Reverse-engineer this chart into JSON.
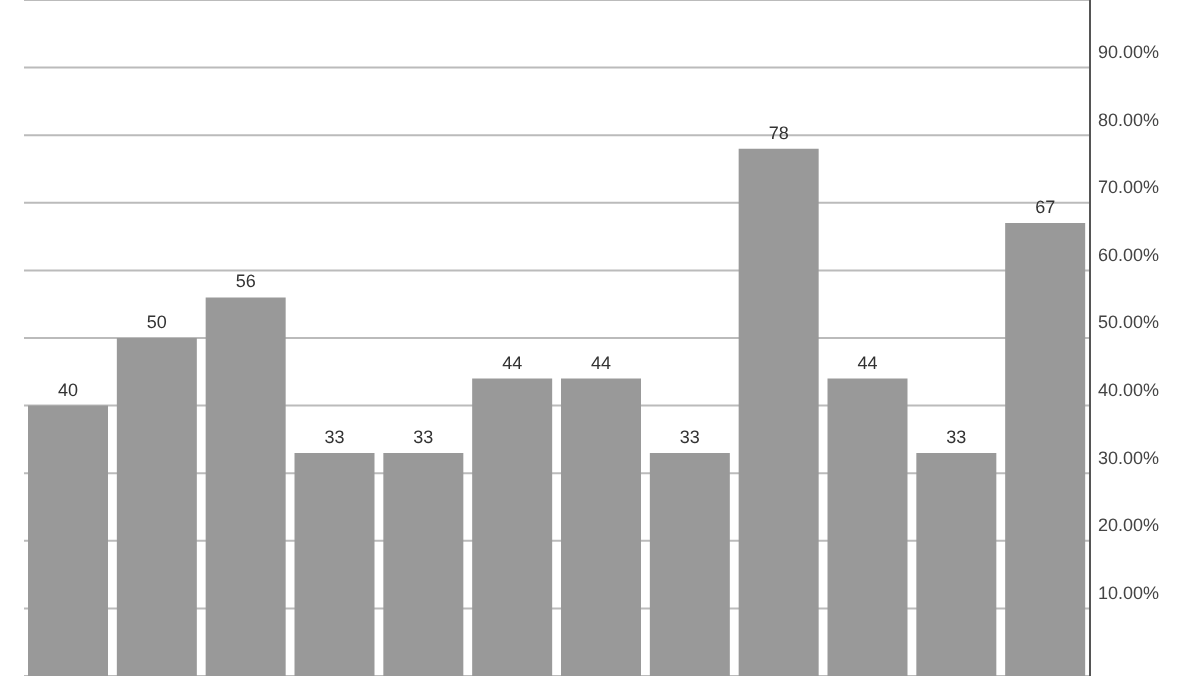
{
  "chart_data": {
    "type": "bar",
    "categories": [
      null,
      null,
      null,
      null,
      null,
      null,
      null,
      null,
      null,
      null,
      null,
      null
    ],
    "values": [
      40,
      50,
      56,
      33,
      33,
      44,
      44,
      33,
      78,
      44,
      33,
      67
    ],
    "color": "#999999",
    "data_labels": true,
    "ylim": [
      0,
      100
    ],
    "yticks": [
      {
        "value": 10,
        "label": "10.00%"
      },
      {
        "value": 20,
        "label": "20.00%"
      },
      {
        "value": 30,
        "label": "30.00%"
      },
      {
        "value": 40,
        "label": "40.00%"
      },
      {
        "value": 50,
        "label": "50.00%"
      },
      {
        "value": 60,
        "label": "60.00%"
      },
      {
        "value": 70,
        "label": "70.00%"
      },
      {
        "value": 80,
        "label": "80.00%"
      },
      {
        "value": 90,
        "label": "90.00%"
      }
    ],
    "grid": "y",
    "tick_labels": "y"
  }
}
